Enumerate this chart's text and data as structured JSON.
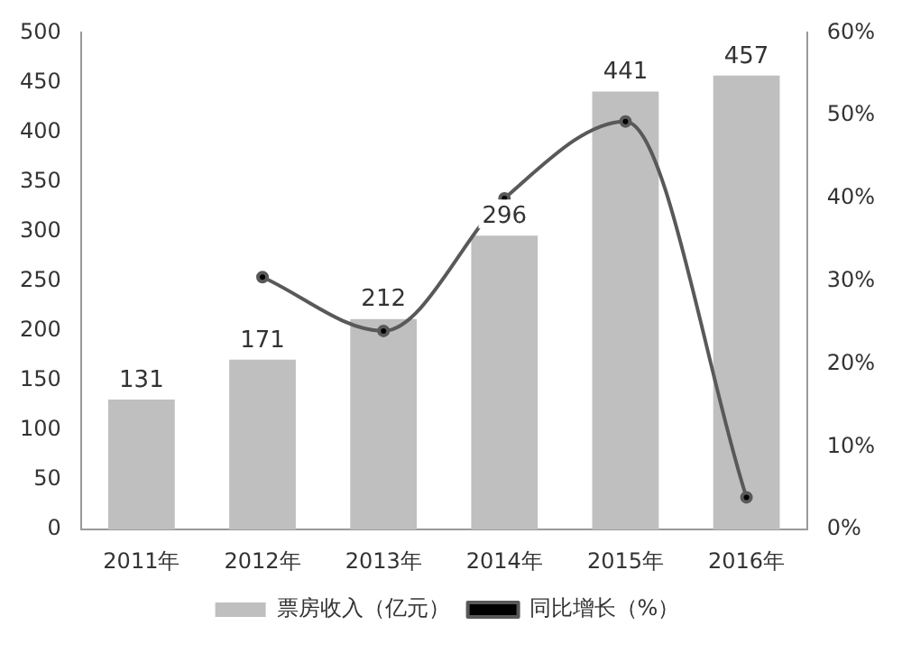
{
  "chart_data": {
    "type": "bar",
    "categories": [
      "2011年",
      "2012年",
      "2013年",
      "2014年",
      "2015年",
      "2016年"
    ],
    "series": [
      {
        "name": "票房收入（亿元）",
        "color": "#bfbfbf",
        "values": [
          131,
          171,
          212,
          296,
          441,
          457
        ],
        "value_labels": [
          "131",
          "171",
          "212",
          "296",
          "441",
          "457"
        ]
      },
      {
        "name": "同比增长（%）",
        "type": "line",
        "axis": "y2",
        "color": "#595959",
        "values": [
          null,
          30.5,
          24,
          40,
          49.3,
          3.9
        ]
      }
    ],
    "ylim": [
      0,
      500
    ],
    "yticks": [
      0,
      50,
      100,
      150,
      200,
      250,
      300,
      350,
      400,
      450,
      500
    ],
    "y2lim": [
      0,
      60
    ],
    "y2ticks": [
      {
        "value": 0,
        "label": "0%"
      },
      {
        "value": 10,
        "label": "10%"
      },
      {
        "value": 20,
        "label": "20%"
      },
      {
        "value": 30,
        "label": "30%"
      },
      {
        "value": 40,
        "label": "40%"
      },
      {
        "value": 50,
        "label": "50%"
      },
      {
        "value": 60,
        "label": "60%"
      }
    ],
    "legend": "bottom",
    "grid": false,
    "marker": "circle",
    "line_style": "solid"
  }
}
